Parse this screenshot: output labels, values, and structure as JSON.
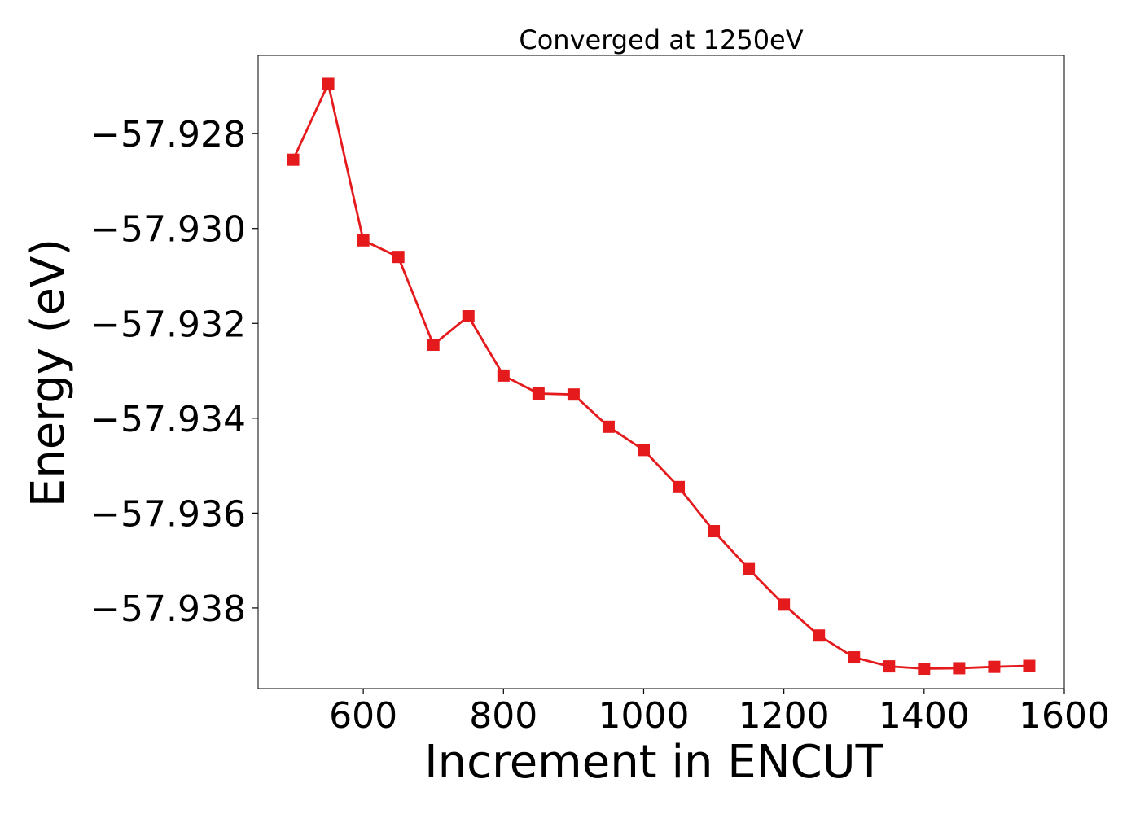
{
  "chart_data": {
    "type": "line",
    "title": "Converged at 1250eV",
    "xlabel": "Increment in ENCUT",
    "ylabel": "Energy (eV)",
    "xlim": [
      450,
      1600
    ],
    "ylim": [
      -57.9397,
      -57.92635
    ],
    "x_ticks": [
      600,
      800,
      1000,
      1200,
      1400,
      1600
    ],
    "y_ticks": [
      -57.928,
      -57.93,
      -57.932,
      -57.934,
      -57.936,
      -57.938
    ],
    "x_tick_labels": [
      "600",
      "800",
      "1000",
      "1200",
      "1400",
      "1600"
    ],
    "y_tick_labels": [
      "−57.928",
      "−57.930",
      "−57.932",
      "−57.934",
      "−57.936",
      "−57.938"
    ],
    "grid": false,
    "series": [
      {
        "color": "#e41a1c",
        "marker": "square",
        "x": [
          500,
          550,
          600,
          650,
          700,
          750,
          800,
          850,
          900,
          950,
          1000,
          1050,
          1100,
          1150,
          1200,
          1250,
          1300,
          1350,
          1400,
          1450,
          1500,
          1550
        ],
        "y": [
          -57.92855,
          -57.92695,
          -57.93025,
          -57.9306,
          -57.93245,
          -57.93185,
          -57.9331,
          -57.93348,
          -57.9335,
          -57.93418,
          -57.93467,
          -57.93545,
          -57.93638,
          -57.93718,
          -57.93793,
          -57.93858,
          -57.93904,
          -57.93923,
          -57.93928,
          -57.93927,
          -57.93924,
          -57.93922
        ]
      }
    ]
  }
}
